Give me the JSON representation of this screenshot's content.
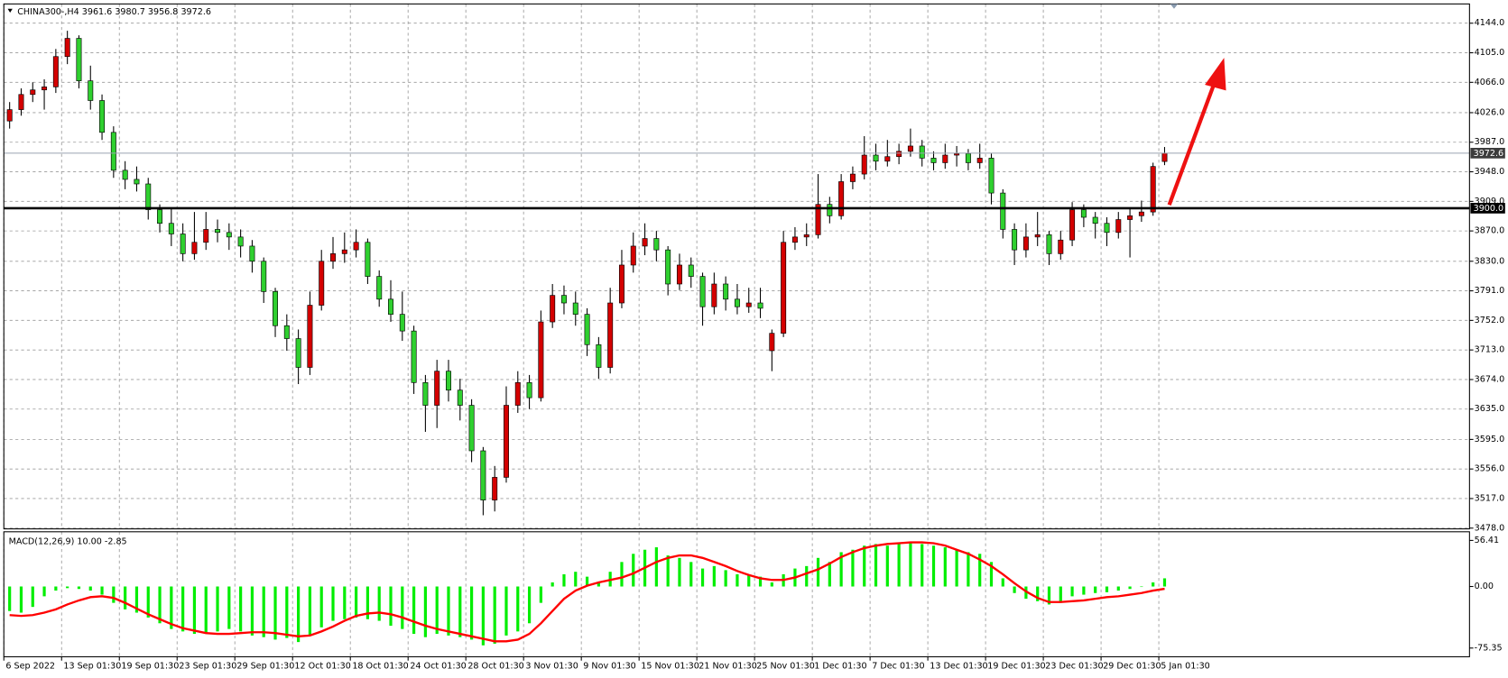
{
  "chart_data": {
    "type": "candlestick",
    "title": "CHINA300-,H4",
    "up_color": "#d40000",
    "down_color": "#2fd02f",
    "wick_color": "#000000",
    "grid": true,
    "xlim": [
      -0.5,
      126.4
    ],
    "ylim": [
      3477,
      4169.4
    ],
    "xticks": [
      {
        "value": -0.5,
        "label": "6 Sep 2022"
      },
      {
        "value": 4.5,
        "label": "13 Sep 01:30"
      },
      {
        "value": 9.5,
        "label": "19 Sep 01:30"
      },
      {
        "value": 14.5,
        "label": "23 Sep 01:30"
      },
      {
        "value": 19.5,
        "label": "29 Sep 01:30"
      },
      {
        "value": 24.5,
        "label": "12 Oct 01:30"
      },
      {
        "value": 29.5,
        "label": "18 Oct 01:30"
      },
      {
        "value": 34.5,
        "label": "24 Oct 01:30"
      },
      {
        "value": 39.5,
        "label": "28 Oct 01:30"
      },
      {
        "value": 44.5,
        "label": "3 Nov 01:30"
      },
      {
        "value": 49.5,
        "label": "9 Nov 01:30"
      },
      {
        "value": 54.5,
        "label": "15 Nov 01:30"
      },
      {
        "value": 59.5,
        "label": "21 Nov 01:30"
      },
      {
        "value": 64.5,
        "label": "25 Nov 01:30"
      },
      {
        "value": 69.5,
        "label": "1 Dec 01:30"
      },
      {
        "value": 74.5,
        "label": "7 Dec 01:30"
      },
      {
        "value": 79.5,
        "label": "13 Dec 01:30"
      },
      {
        "value": 84.5,
        "label": "19 Dec 01:30"
      },
      {
        "value": 89.5,
        "label": "23 Dec 01:30"
      },
      {
        "value": 94.5,
        "label": "29 Dec 01:30"
      },
      {
        "value": 99.5,
        "label": "5 Jan 01:30"
      }
    ],
    "yticks": [
      {
        "value": 4144,
        "label": "4144.0"
      },
      {
        "value": 4105,
        "label": "4105.0"
      },
      {
        "value": 4066,
        "label": "4066.0"
      },
      {
        "value": 4026,
        "label": "4026.0"
      },
      {
        "value": 3987,
        "label": "3987.0"
      },
      {
        "value": 3948,
        "label": "3948.0"
      },
      {
        "value": 3909,
        "label": "3909.0"
      },
      {
        "value": 3870,
        "label": "3870.0"
      },
      {
        "value": 3830,
        "label": "3830.0"
      },
      {
        "value": 3791,
        "label": "3791.0"
      },
      {
        "value": 3752,
        "label": "3752.0"
      },
      {
        "value": 3713,
        "label": "3713.0"
      },
      {
        "value": 3674,
        "label": "3674.0"
      },
      {
        "value": 3635,
        "label": "3635.0"
      },
      {
        "value": 3595,
        "label": "3595.0"
      },
      {
        "value": 3556,
        "label": "3556.0"
      },
      {
        "value": 3517,
        "label": "3517.0"
      },
      {
        "value": 3478,
        "label": "3478.0"
      }
    ],
    "levels": [
      {
        "value": 3972.6,
        "label": "3972.6",
        "color": "#9aa4b0"
      },
      {
        "value": 3900,
        "label": "3900.0",
        "color": "#000000"
      }
    ],
    "candles": [
      [
        4015,
        4040,
        4005,
        4030
      ],
      [
        4030,
        4058,
        4022,
        4050
      ],
      [
        4050,
        4066,
        4040,
        4056
      ],
      [
        4056,
        4070,
        4030,
        4060
      ],
      [
        4060,
        4110,
        4052,
        4100
      ],
      [
        4100,
        4134,
        4090,
        4124
      ],
      [
        4124,
        4128,
        4058,
        4068
      ],
      [
        4068,
        4088,
        4030,
        4042
      ],
      [
        4042,
        4050,
        3990,
        4000
      ],
      [
        4000,
        4008,
        3940,
        3950
      ],
      [
        3950,
        3962,
        3925,
        3938
      ],
      [
        3938,
        3955,
        3922,
        3932
      ],
      [
        3932,
        3940,
        3885,
        3898
      ],
      [
        3898,
        3905,
        3868,
        3880
      ],
      [
        3880,
        3900,
        3850,
        3866
      ],
      [
        3866,
        3880,
        3830,
        3840
      ],
      [
        3840,
        3895,
        3832,
        3855
      ],
      [
        3855,
        3895,
        3845,
        3872
      ],
      [
        3872,
        3885,
        3855,
        3868
      ],
      [
        3868,
        3880,
        3845,
        3862
      ],
      [
        3862,
        3872,
        3835,
        3850
      ],
      [
        3850,
        3858,
        3815,
        3830
      ],
      [
        3830,
        3835,
        3775,
        3790
      ],
      [
        3790,
        3795,
        3730,
        3745
      ],
      [
        3745,
        3760,
        3712,
        3728
      ],
      [
        3728,
        3740,
        3668,
        3690
      ],
      [
        3690,
        3790,
        3680,
        3772
      ],
      [
        3772,
        3845,
        3765,
        3830
      ],
      [
        3830,
        3862,
        3820,
        3840
      ],
      [
        3840,
        3868,
        3828,
        3845
      ],
      [
        3845,
        3872,
        3835,
        3855
      ],
      [
        3855,
        3860,
        3800,
        3810
      ],
      [
        3810,
        3818,
        3770,
        3780
      ],
      [
        3780,
        3805,
        3750,
        3760
      ],
      [
        3760,
        3790,
        3725,
        3738
      ],
      [
        3738,
        3745,
        3655,
        3670
      ],
      [
        3670,
        3680,
        3605,
        3640
      ],
      [
        3640,
        3700,
        3610,
        3685
      ],
      [
        3685,
        3700,
        3645,
        3660
      ],
      [
        3660,
        3675,
        3620,
        3640
      ],
      [
        3640,
        3648,
        3565,
        3580
      ],
      [
        3580,
        3585,
        3495,
        3515
      ],
      [
        3515,
        3560,
        3500,
        3545
      ],
      [
        3545,
        3665,
        3538,
        3640
      ],
      [
        3640,
        3685,
        3630,
        3670
      ],
      [
        3670,
        3680,
        3635,
        3650
      ],
      [
        3650,
        3765,
        3645,
        3750
      ],
      [
        3750,
        3800,
        3742,
        3785
      ],
      [
        3785,
        3798,
        3760,
        3775
      ],
      [
        3775,
        3790,
        3745,
        3760
      ],
      [
        3760,
        3768,
        3705,
        3720
      ],
      [
        3720,
        3730,
        3675,
        3690
      ],
      [
        3690,
        3795,
        3682,
        3775
      ],
      [
        3775,
        3845,
        3768,
        3825
      ],
      [
        3825,
        3868,
        3815,
        3850
      ],
      [
        3850,
        3880,
        3838,
        3860
      ],
      [
        3860,
        3870,
        3830,
        3845
      ],
      [
        3845,
        3850,
        3785,
        3800
      ],
      [
        3800,
        3840,
        3792,
        3825
      ],
      [
        3825,
        3835,
        3795,
        3810
      ],
      [
        3810,
        3815,
        3745,
        3770
      ],
      [
        3770,
        3815,
        3760,
        3800
      ],
      [
        3800,
        3810,
        3765,
        3780
      ],
      [
        3780,
        3800,
        3760,
        3770
      ],
      [
        3770,
        3795,
        3762,
        3775
      ],
      [
        3775,
        3795,
        3755,
        3768
      ],
      [
        3712,
        3740,
        3685,
        3735
      ],
      [
        3735,
        3870,
        3730,
        3855
      ],
      [
        3855,
        3875,
        3845,
        3862
      ],
      [
        3862,
        3880,
        3850,
        3865
      ],
      [
        3865,
        3945,
        3860,
        3905
      ],
      [
        3905,
        3915,
        3880,
        3890
      ],
      [
        3890,
        3945,
        3885,
        3935
      ],
      [
        3935,
        3955,
        3925,
        3945
      ],
      [
        3945,
        3995,
        3938,
        3970
      ],
      [
        3970,
        3985,
        3950,
        3962
      ],
      [
        3962,
        3990,
        3955,
        3968
      ],
      [
        3968,
        3985,
        3958,
        3975
      ],
      [
        3975,
        4005,
        3968,
        3982
      ],
      [
        3982,
        3990,
        3955,
        3966
      ],
      [
        3966,
        3975,
        3950,
        3960
      ],
      [
        3960,
        3985,
        3952,
        3970
      ],
      [
        3970,
        3982,
        3955,
        3972
      ],
      [
        3972,
        3978,
        3950,
        3960
      ],
      [
        3960,
        3985,
        3952,
        3966
      ],
      [
        3966,
        3972,
        3905,
        3920
      ],
      [
        3920,
        3925,
        3860,
        3872
      ],
      [
        3872,
        3880,
        3825,
        3845
      ],
      [
        3845,
        3880,
        3835,
        3862
      ],
      [
        3862,
        3895,
        3850,
        3865
      ],
      [
        3865,
        3870,
        3825,
        3840
      ],
      [
        3840,
        3870,
        3832,
        3858
      ],
      [
        3858,
        3908,
        3850,
        3898
      ],
      [
        3898,
        3905,
        3875,
        3888
      ],
      [
        3888,
        3895,
        3860,
        3880
      ],
      [
        3880,
        3888,
        3850,
        3868
      ],
      [
        3868,
        3895,
        3860,
        3885
      ],
      [
        3885,
        3900,
        3835,
        3890
      ],
      [
        3890,
        3910,
        3882,
        3895
      ],
      [
        3895,
        3960,
        3890,
        3955
      ],
      [
        3961.6,
        3980.7,
        3956.8,
        3972.6
      ]
    ],
    "macd": {
      "title": "MACD(12,26,9)",
      "ylim": [
        -86,
        67
      ],
      "yticks": [
        56.41,
        {
          "value": 0,
          "label": "0.00"
        },
        -75.35
      ],
      "histogram": {
        "color": "#00ee00",
        "value_label": "10.00",
        "values": [
          -30,
          -32,
          -25,
          -12,
          -5,
          -2,
          -3,
          -5,
          -10,
          -20,
          -28,
          -32,
          -38,
          -45,
          -52,
          -55,
          -58,
          -58,
          -55,
          -52,
          -55,
          -60,
          -62,
          -65,
          -63,
          -68,
          -60,
          -50,
          -42,
          -40,
          -38,
          -40,
          -42,
          -48,
          -52,
          -58,
          -62,
          -58,
          -60,
          -62,
          -65,
          -72,
          -70,
          -60,
          -55,
          -45,
          -20,
          5,
          15,
          18,
          12,
          5,
          18,
          30,
          40,
          45,
          48,
          38,
          35,
          30,
          22,
          25,
          20,
          15,
          14,
          12,
          5,
          15,
          22,
          25,
          35,
          30,
          42,
          45,
          50,
          52,
          50,
          54,
          55,
          52,
          50,
          48,
          45,
          42,
          40,
          30,
          10,
          -8,
          -15,
          -18,
          -22,
          -20,
          -12,
          -10,
          -8,
          -7,
          -5,
          -3,
          0,
          5,
          10
        ]
      },
      "signal": {
        "color": "#ff0000",
        "values": [
          -35,
          -36,
          -35,
          -32,
          -28,
          -22,
          -17,
          -13,
          -12,
          -14,
          -20,
          -27,
          -34,
          -40,
          -46,
          -51,
          -54,
          -57,
          -58,
          -58,
          -57,
          -56,
          -56,
          -57,
          -59,
          -61,
          -60,
          -55,
          -49,
          -42,
          -36,
          -33,
          -32,
          -34,
          -38,
          -43,
          -48,
          -52,
          -55,
          -58,
          -61,
          -64,
          -67,
          -67,
          -65,
          -58,
          -45,
          -30,
          -15,
          -5,
          1,
          5,
          8,
          11,
          16,
          23,
          30,
          35,
          38,
          38,
          35,
          30,
          25,
          19,
          14,
          10,
          8,
          8,
          11,
          16,
          21,
          28,
          36,
          42,
          47,
          50,
          52,
          53,
          54,
          54,
          53,
          50,
          45,
          40,
          33,
          25,
          15,
          4,
          -6,
          -14,
          -19,
          -19,
          -18,
          -17,
          -15,
          -13,
          -12,
          -10,
          -8,
          -5,
          -2.85
        ]
      }
    }
  }
}
